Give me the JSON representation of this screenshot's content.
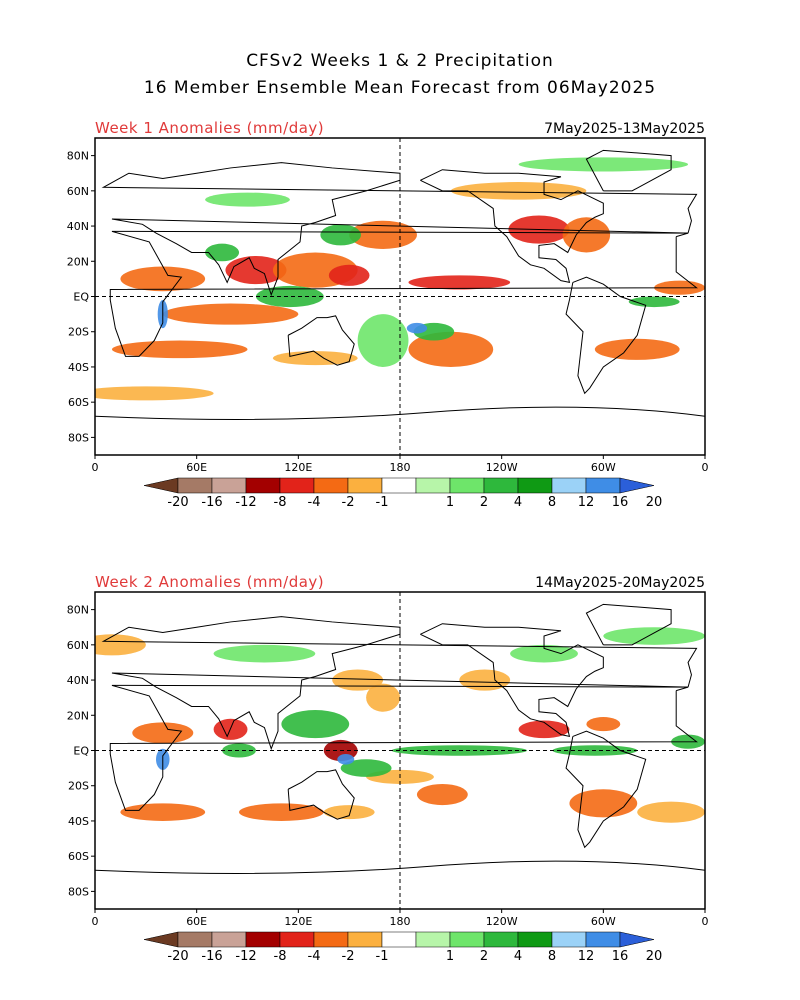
{
  "header": {
    "title_line1": "CFSv2 Weeks 1 & 2 Precipitation",
    "title_line2": "16 Member Ensemble Mean Forecast from 06May2025"
  },
  "panels": [
    {
      "label": "Week 1 Anomalies (mm/day)",
      "dates": "7May2025-13May2025",
      "lat_ticks": [
        "80N",
        "60N",
        "40N",
        "20N",
        "EQ",
        "20S",
        "40S",
        "60S",
        "80S"
      ],
      "lon_ticks": [
        "0",
        "60E",
        "120E",
        "180",
        "120W",
        "60W",
        "0"
      ]
    },
    {
      "label": "Week 2 Anomalies (mm/day)",
      "dates": "14May2025-20May2025",
      "lat_ticks": [
        "80N",
        "60N",
        "40N",
        "20N",
        "EQ",
        "20S",
        "40S",
        "60S",
        "80S"
      ],
      "lon_ticks": [
        "0",
        "60E",
        "120E",
        "180",
        "120W",
        "60W",
        "0"
      ]
    }
  ],
  "colorbar": {
    "labels": [
      "-20",
      "-16",
      "-12",
      "-8",
      "-4",
      "-2",
      "-1",
      "1",
      "2",
      "4",
      "8",
      "12",
      "16",
      "20"
    ],
    "colors": [
      "#6b3a22",
      "#a57a66",
      "#c9a297",
      "#a30000",
      "#e2231a",
      "#f46a14",
      "#fbb03f",
      "#ffffff",
      "#b7f5a9",
      "#6ee56a",
      "#2eb83c",
      "#0f9a14",
      "#9bd2f7",
      "#3f8de6",
      "#2b5fd9"
    ]
  }
}
